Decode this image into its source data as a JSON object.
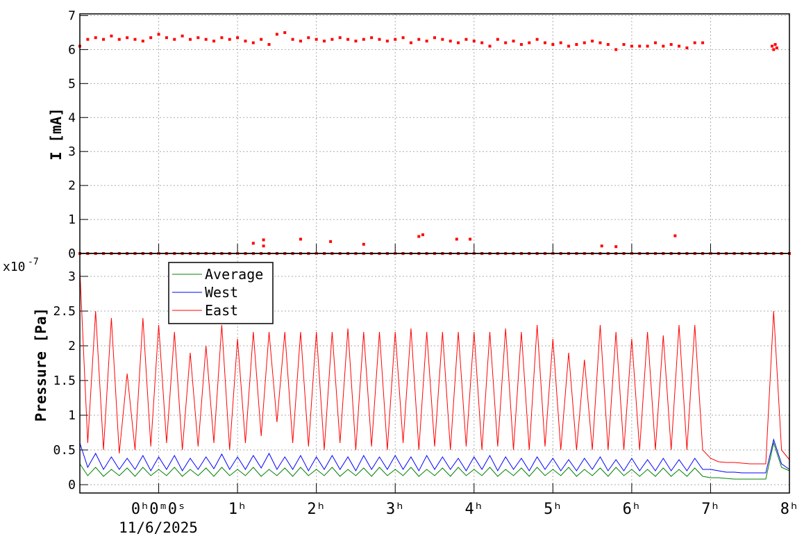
{
  "chart_data": [
    {
      "type": "scatter",
      "color": "#ff0000",
      "y_label": "I [mA]",
      "xlim": [
        -1,
        8
      ],
      "ylim": [
        0,
        7.05
      ],
      "xticks": [
        0,
        1,
        2,
        3,
        4,
        5,
        6,
        7,
        8
      ],
      "yticks": [
        0,
        1,
        2,
        3,
        4,
        5,
        6,
        7
      ],
      "grid": true,
      "x": [
        -1,
        -0.9,
        -0.8,
        -0.7,
        -0.6,
        -0.5,
        -0.4,
        -0.3,
        -0.2,
        -0.1,
        0,
        0.1,
        0.2,
        0.3,
        0.4,
        0.5,
        0.6,
        0.7,
        0.8,
        0.9,
        1,
        1.1,
        1.2,
        1.3,
        1.4,
        1.5,
        1.6,
        1.7,
        1.8,
        1.9,
        2,
        2.1,
        2.2,
        2.3,
        2.4,
        2.5,
        2.6,
        2.7,
        2.8,
        2.9,
        3,
        3.1,
        3.2,
        3.3,
        3.4,
        3.5,
        3.6,
        3.7,
        3.8,
        3.9,
        4,
        4.1,
        4.2,
        4.3,
        4.4,
        4.5,
        4.6,
        4.7,
        4.8,
        4.9,
        5,
        5.1,
        5.2,
        5.3,
        5.4,
        5.5,
        5.6,
        5.7,
        5.8,
        5.9,
        6,
        6.1,
        6.2,
        6.3,
        6.4,
        6.5,
        6.6,
        6.7,
        6.8,
        6.9,
        7.78,
        7.8,
        7.82,
        7.84,
        1.2,
        1.33,
        1.33,
        1.8,
        2.18,
        2.6,
        3.3,
        3.35,
        3.78,
        3.95,
        5.62,
        5.8,
        6.55,
        -1,
        -0.9,
        -0.8,
        -0.7,
        -0.6,
        -0.5,
        -0.4,
        -0.3,
        -0.2,
        -0.1,
        0,
        0.1,
        0.2,
        0.3,
        0.4,
        0.5,
        0.6,
        0.7,
        0.8,
        0.9,
        1,
        1.1,
        1.2,
        1.3,
        1.4,
        1.5,
        1.6,
        1.7,
        1.8,
        1.9,
        2,
        2.1,
        2.2,
        2.3,
        2.4,
        2.5,
        2.6,
        2.7,
        2.8,
        2.9,
        3,
        3.1,
        3.2,
        3.3,
        3.4,
        3.5,
        3.6,
        3.7,
        3.8,
        3.9,
        4,
        4.1,
        4.2,
        4.3,
        4.4,
        4.5,
        4.6,
        4.7,
        4.8,
        4.9,
        5,
        5.1,
        5.2,
        5.3,
        5.4,
        5.5,
        5.6,
        5.7,
        5.8,
        5.9,
        6,
        6.1,
        6.2,
        6.3,
        6.4,
        6.5,
        6.6,
        6.7,
        6.8,
        6.9,
        7,
        7.1,
        7.2,
        7.3,
        7.4,
        7.5,
        7.6,
        7.7,
        7.8,
        7.9,
        8
      ],
      "y": [
        6.1,
        6.3,
        6.35,
        6.3,
        6.4,
        6.3,
        6.35,
        6.3,
        6.25,
        6.35,
        6.45,
        6.35,
        6.3,
        6.4,
        6.3,
        6.35,
        6.3,
        6.25,
        6.35,
        6.3,
        6.35,
        6.25,
        6.2,
        6.3,
        6.15,
        6.45,
        6.5,
        6.3,
        6.25,
        6.35,
        6.3,
        6.25,
        6.3,
        6.35,
        6.3,
        6.25,
        6.3,
        6.35,
        6.3,
        6.25,
        6.3,
        6.35,
        6.2,
        6.3,
        6.25,
        6.35,
        6.3,
        6.25,
        6.2,
        6.3,
        6.25,
        6.2,
        6.1,
        6.3,
        6.2,
        6.25,
        6.15,
        6.2,
        6.3,
        6.2,
        6.15,
        6.2,
        6.1,
        6.15,
        6.2,
        6.25,
        6.2,
        6.15,
        6,
        6.15,
        6.1,
        6.1,
        6.1,
        6.2,
        6.1,
        6.15,
        6.1,
        6.05,
        6.2,
        6.2,
        6.1,
        6,
        6.15,
        6.05,
        0.3,
        0.4,
        0.22,
        0.42,
        0.35,
        0.27,
        0.5,
        0.55,
        0.42,
        0.42,
        0.22,
        0.2,
        0.52,
        0,
        0,
        0,
        0,
        0,
        0,
        0,
        0,
        0,
        0,
        0,
        0,
        0,
        0,
        0,
        0,
        0,
        0,
        0,
        0,
        0,
        0,
        0,
        0,
        0,
        0,
        0,
        0,
        0,
        0,
        0,
        0,
        0,
        0,
        0,
        0,
        0,
        0,
        0,
        0,
        0,
        0,
        0,
        0,
        0,
        0,
        0,
        0,
        0,
        0,
        0,
        0,
        0,
        0,
        0,
        0,
        0,
        0,
        0,
        0,
        0,
        0,
        0,
        0,
        0,
        0,
        0,
        0,
        0,
        0,
        0,
        0,
        0,
        0,
        0,
        0,
        0,
        0,
        0,
        0,
        0,
        0,
        0,
        0,
        0,
        0,
        0,
        0,
        0,
        0,
        0
      ]
    },
    {
      "type": "line",
      "y_label": "Pressure [Pa]",
      "y_multiplier": "x10",
      "y_exponent": "-7",
      "x_date_label": "11/6/2025",
      "xlim": [
        -1,
        8
      ],
      "ylim": [
        -0.12,
        3.33
      ],
      "xticks": [
        {
          "value": 0,
          "label": "0ʰ0ᵐ0ˢ"
        },
        {
          "value": 1,
          "label": "1ʰ"
        },
        {
          "value": 2,
          "label": "2ʰ"
        },
        {
          "value": 3,
          "label": "3ʰ"
        },
        {
          "value": 4,
          "label": "4ʰ"
        },
        {
          "value": 5,
          "label": "5ʰ"
        },
        {
          "value": 6,
          "label": "6ʰ"
        },
        {
          "value": 7,
          "label": "7ʰ"
        },
        {
          "value": 8,
          "label": "8ʰ"
        }
      ],
      "yticks": [
        0,
        0.5,
        1,
        1.5,
        2,
        2.5,
        3
      ],
      "grid": true,
      "legend": "top-left",
      "x": [
        -1,
        -0.9,
        -0.8,
        -0.7,
        -0.6,
        -0.5,
        -0.4,
        -0.3,
        -0.2,
        -0.1,
        0,
        0.1,
        0.2,
        0.3,
        0.4,
        0.5,
        0.6,
        0.7,
        0.8,
        0.9,
        1,
        1.1,
        1.2,
        1.3,
        1.4,
        1.5,
        1.6,
        1.7,
        1.8,
        1.9,
        2,
        2.1,
        2.2,
        2.3,
        2.4,
        2.5,
        2.6,
        2.7,
        2.8,
        2.9,
        3,
        3.1,
        3.2,
        3.3,
        3.4,
        3.5,
        3.6,
        3.7,
        3.8,
        3.9,
        4,
        4.1,
        4.2,
        4.3,
        4.4,
        4.5,
        4.6,
        4.7,
        4.8,
        4.9,
        5,
        5.1,
        5.2,
        5.3,
        5.4,
        5.5,
        5.6,
        5.7,
        5.8,
        5.9,
        6,
        6.1,
        6.2,
        6.3,
        6.4,
        6.5,
        6.6,
        6.7,
        6.8,
        6.9,
        7,
        7.1,
        7.2,
        7.3,
        7.4,
        7.5,
        7.6,
        7.7,
        7.8,
        7.9,
        8
      ],
      "series": [
        {
          "name": "Average",
          "color": "#008000",
          "values": [
            0.3,
            0.13,
            0.25,
            0.12,
            0.22,
            0.13,
            0.24,
            0.12,
            0.25,
            0.13,
            0.22,
            0.13,
            0.25,
            0.12,
            0.22,
            0.13,
            0.24,
            0.12,
            0.25,
            0.13,
            0.22,
            0.13,
            0.25,
            0.12,
            0.22,
            0.13,
            0.24,
            0.12,
            0.25,
            0.13,
            0.22,
            0.13,
            0.25,
            0.12,
            0.22,
            0.13,
            0.24,
            0.12,
            0.25,
            0.13,
            0.22,
            0.13,
            0.25,
            0.12,
            0.22,
            0.13,
            0.24,
            0.12,
            0.25,
            0.13,
            0.22,
            0.13,
            0.25,
            0.12,
            0.22,
            0.13,
            0.24,
            0.12,
            0.25,
            0.13,
            0.22,
            0.13,
            0.25,
            0.12,
            0.22,
            0.13,
            0.24,
            0.12,
            0.25,
            0.13,
            0.22,
            0.12,
            0.22,
            0.12,
            0.24,
            0.12,
            0.22,
            0.12,
            0.24,
            0.12,
            0.1,
            0.1,
            0.09,
            0.08,
            0.08,
            0.08,
            0.08,
            0.08,
            0.6,
            0.25,
            0.2
          ]
        },
        {
          "name": "West",
          "color": "#0000ff",
          "values": [
            0.6,
            0.25,
            0.45,
            0.22,
            0.4,
            0.22,
            0.38,
            0.22,
            0.42,
            0.2,
            0.4,
            0.22,
            0.42,
            0.2,
            0.38,
            0.22,
            0.4,
            0.23,
            0.44,
            0.22,
            0.4,
            0.22,
            0.42,
            0.24,
            0.45,
            0.22,
            0.4,
            0.22,
            0.42,
            0.2,
            0.4,
            0.22,
            0.42,
            0.22,
            0.4,
            0.2,
            0.42,
            0.22,
            0.4,
            0.22,
            0.42,
            0.22,
            0.4,
            0.2,
            0.42,
            0.22,
            0.4,
            0.22,
            0.38,
            0.2,
            0.4,
            0.22,
            0.42,
            0.2,
            0.4,
            0.22,
            0.38,
            0.2,
            0.4,
            0.22,
            0.38,
            0.2,
            0.36,
            0.2,
            0.38,
            0.22,
            0.4,
            0.2,
            0.36,
            0.2,
            0.38,
            0.2,
            0.36,
            0.2,
            0.38,
            0.2,
            0.36,
            0.2,
            0.38,
            0.22,
            0.22,
            0.2,
            0.18,
            0.18,
            0.17,
            0.17,
            0.17,
            0.17,
            0.65,
            0.3,
            0.22
          ]
        },
        {
          "name": "East",
          "color": "#ff0000",
          "values": [
            3.1,
            0.6,
            2.5,
            0.5,
            2.4,
            0.45,
            1.6,
            0.5,
            2.4,
            0.55,
            2.3,
            0.6,
            2.2,
            0.5,
            1.9,
            0.55,
            2.0,
            0.6,
            2.3,
            0.5,
            2.1,
            0.6,
            2.2,
            0.7,
            2.2,
            0.9,
            2.2,
            0.6,
            2.2,
            0.55,
            2.2,
            0.5,
            2.2,
            0.6,
            2.25,
            0.5,
            2.2,
            0.55,
            2.2,
            0.5,
            2.2,
            0.6,
            2.25,
            0.5,
            2.2,
            0.55,
            2.2,
            0.5,
            2.2,
            0.55,
            2.2,
            0.5,
            2.2,
            0.55,
            2.25,
            0.5,
            2.2,
            0.5,
            2.3,
            0.55,
            2.1,
            0.5,
            1.9,
            0.5,
            1.8,
            0.5,
            2.3,
            0.5,
            2.2,
            0.5,
            2.1,
            0.5,
            2.2,
            0.5,
            2.15,
            0.5,
            2.3,
            0.5,
            2.3,
            0.5,
            0.38,
            0.33,
            0.32,
            0.32,
            0.31,
            0.3,
            0.3,
            0.3,
            2.5,
            0.5,
            0.36
          ]
        }
      ]
    }
  ]
}
